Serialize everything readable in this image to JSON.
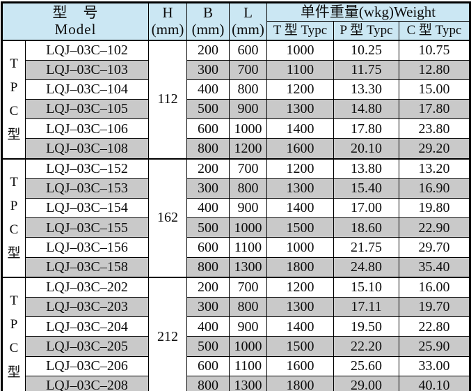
{
  "page": {
    "background": "#ffffff"
  },
  "colors": {
    "header_bg": "#cbe7f3",
    "alt_row_bg": "#c9c9c9",
    "border": "#000000",
    "text": "#0d0d0d"
  },
  "table": {
    "header": {
      "model_cn": "型　号",
      "model_en": "Model",
      "h_label": "H",
      "h_unit": "(mm)",
      "b_label": "B",
      "b_unit": "(mm)",
      "l_label": "L",
      "l_unit": "(mm)",
      "weight_label": "单件重量(wkg)Weight",
      "weight_sub": [
        "T 型 Typc",
        "P 型 Typc",
        "C 型 Typc"
      ]
    },
    "groups": [
      {
        "side_label": [
          "T",
          "P",
          "C",
          "型"
        ],
        "h": "112",
        "rows": [
          {
            "model": "LQJ–03C–102",
            "b": "200",
            "l": "600",
            "t": "1000",
            "p": "10.25",
            "c": "10.75"
          },
          {
            "model": "LQJ–03C–103",
            "b": "300",
            "l": "700",
            "t": "1100",
            "p": "11.75",
            "c": "12.80"
          },
          {
            "model": "LQJ–03C–104",
            "b": "400",
            "l": "800",
            "t": "1200",
            "p": "13.30",
            "c": "15.00"
          },
          {
            "model": "LQJ–03C–105",
            "b": "500",
            "l": "900",
            "t": "1300",
            "p": "14.80",
            "c": "17.80"
          },
          {
            "model": "LQJ–03C–106",
            "b": "600",
            "l": "1000",
            "t": "1400",
            "p": "17.80",
            "c": "23.80"
          },
          {
            "model": "LQJ–03C–108",
            "b": "800",
            "l": "1200",
            "t": "1600",
            "p": "20.10",
            "c": "29.20"
          }
        ]
      },
      {
        "side_label": [
          "T",
          "P",
          "C",
          "型"
        ],
        "h": "162",
        "rows": [
          {
            "model": "LQJ–03C–152",
            "b": "200",
            "l": "700",
            "t": "1200",
            "p": "13.80",
            "c": "13.20"
          },
          {
            "model": "LQJ–03C–153",
            "b": "300",
            "l": "800",
            "t": "1300",
            "p": "15.40",
            "c": "16.90"
          },
          {
            "model": "LQJ–03C–154",
            "b": "400",
            "l": "900",
            "t": "1400",
            "p": "17.00",
            "c": "19.80"
          },
          {
            "model": "LQJ–03C–155",
            "b": "500",
            "l": "1000",
            "t": "1500",
            "p": "18.60",
            "c": "22.90"
          },
          {
            "model": "LQJ–03C–156",
            "b": "600",
            "l": "1100",
            "t": "1000",
            "p": "21.75",
            "c": "29.70"
          },
          {
            "model": "LQJ–03C–158",
            "b": "800",
            "l": "1300",
            "t": "1800",
            "p": "24.80",
            "c": "35.40"
          }
        ]
      },
      {
        "side_label": [
          "T",
          "P",
          "C",
          "型"
        ],
        "h": "212",
        "rows": [
          {
            "model": "LQJ–03C–202",
            "b": "200",
            "l": "700",
            "t": "1200",
            "p": "15.10",
            "c": "16.00"
          },
          {
            "model": "LQJ–03C–203",
            "b": "300",
            "l": "800",
            "t": "1300",
            "p": "17.11",
            "c": "19.70"
          },
          {
            "model": "LQJ–03C–204",
            "b": "400",
            "l": "900",
            "t": "1400",
            "p": "19.50",
            "c": "22.80"
          },
          {
            "model": "LQJ–03C–205",
            "b": "500",
            "l": "1000",
            "t": "1500",
            "p": "22.20",
            "c": "25.90"
          },
          {
            "model": "LQJ–03C–206",
            "b": "600",
            "l": "1100",
            "t": "1600",
            "p": "25.60",
            "c": "33.00"
          },
          {
            "model": "LQJ–03C–208",
            "b": "800",
            "l": "1300",
            "t": "1800",
            "p": "29.00",
            "c": "40.10"
          }
        ]
      }
    ]
  }
}
